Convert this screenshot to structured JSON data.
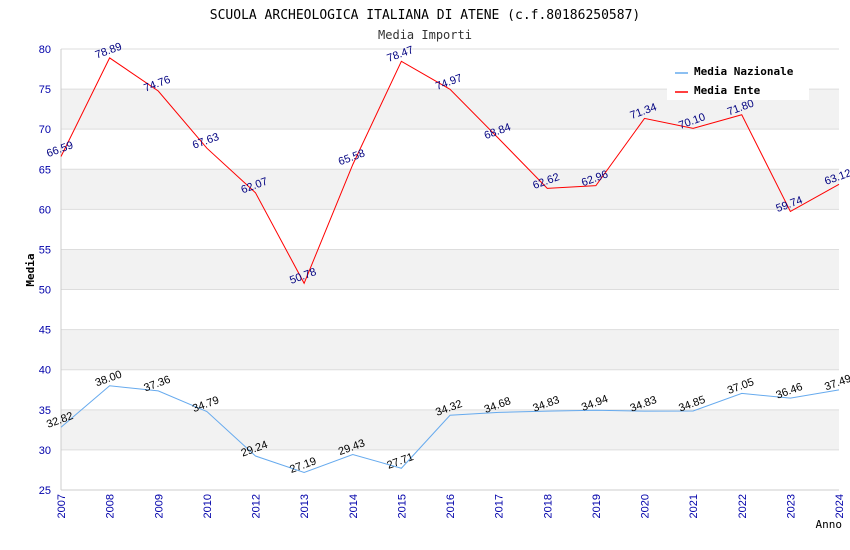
{
  "chart_data": {
    "type": "line",
    "title": "SCUOLA ARCHEOLOGICA ITALIANA DI ATENE (c.f.80186250587)",
    "subtitle": "Media Importi",
    "xlabel": "Anno",
    "ylabel": "Media",
    "ylim": [
      25,
      80
    ],
    "yticks": [
      25,
      30,
      35,
      40,
      45,
      50,
      55,
      60,
      65,
      70,
      75,
      80
    ],
    "categories": [
      "2007",
      "2008",
      "2009",
      "2010",
      "2012",
      "2013",
      "2014",
      "2015",
      "2016",
      "2017",
      "2018",
      "2019",
      "2020",
      "2021",
      "2022",
      "2023",
      "2024"
    ],
    "legend_position": "top-right",
    "series": [
      {
        "name": "Media Nazionale",
        "color": "#66aaee",
        "label_color": "#000000",
        "values": [
          32.82,
          38.0,
          37.36,
          34.79,
          29.24,
          27.19,
          29.43,
          27.71,
          34.32,
          34.68,
          34.83,
          34.94,
          34.83,
          34.85,
          37.05,
          36.46,
          37.49
        ],
        "labels": [
          "32.82",
          "38.00",
          "37.36",
          "34.79",
          "29.24",
          "27.19",
          "29.43",
          "27.71",
          "34.32",
          "34.68",
          "34.83",
          "34.94",
          "34.83",
          "34.85",
          "37.05",
          "36.46",
          "37.49"
        ]
      },
      {
        "name": "Media Ente",
        "color": "#ff0000",
        "label_color": "#000080",
        "values": [
          66.59,
          78.89,
          74.76,
          67.63,
          62.07,
          50.78,
          65.58,
          78.47,
          74.97,
          68.84,
          62.62,
          62.96,
          71.34,
          70.1,
          71.8,
          59.74,
          63.12
        ],
        "labels": [
          "66.59",
          "78.89",
          "74.76",
          "67.63",
          "62.07",
          "50.78",
          "65.58",
          "78.47",
          "74.97",
          "68.84",
          "62.62",
          "62.96",
          "71.34",
          "70.10",
          "71.80",
          "59.74",
          "63.12"
        ]
      }
    ]
  }
}
